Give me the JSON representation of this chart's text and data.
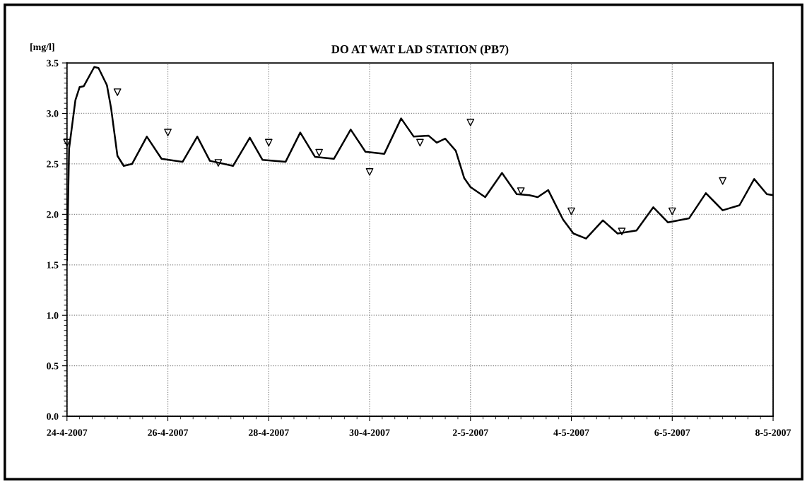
{
  "chart_data": {
    "type": "line",
    "title": "DO AT WAT LAD STATION (PB7)",
    "ylabel": "[mg/l]",
    "xlim": [
      "2007-04-24",
      "2007-05-08"
    ],
    "xticks": [
      {
        "value": "2007-04-24",
        "label": "24-4-2007"
      },
      {
        "value": "2007-04-26",
        "label": "26-4-2007"
      },
      {
        "value": "2007-04-28",
        "label": "28-4-2007"
      },
      {
        "value": "2007-04-30",
        "label": "30-4-2007"
      },
      {
        "value": "2007-05-02",
        "label": "2-5-2007"
      },
      {
        "value": "2007-05-04",
        "label": "4-5-2007"
      },
      {
        "value": "2007-05-06",
        "label": "6-5-2007"
      },
      {
        "value": "2007-05-08",
        "label": "8-5-2007"
      }
    ],
    "ylim": [
      0,
      3.5
    ],
    "yticks": [
      {
        "value": 0,
        "label": "0.0"
      },
      {
        "value": 0.5,
        "label": "0.5"
      },
      {
        "value": 1.0,
        "label": "1.0"
      },
      {
        "value": 1.5,
        "label": "1.5"
      },
      {
        "value": 2.0,
        "label": "2.0"
      },
      {
        "value": 2.5,
        "label": "2.5"
      },
      {
        "value": 3.0,
        "label": "3.0"
      },
      {
        "value": 3.5,
        "label": "3.5"
      }
    ],
    "grid": true,
    "line_style": "solid",
    "series": [
      {
        "color": "#000000",
        "marker": "none",
        "x": [
          "2007-04-24T00:00",
          "2007-04-24T01:00",
          "2007-04-24T04:00",
          "2007-04-24T06:00",
          "2007-04-24T08:00",
          "2007-04-24T13:00",
          "2007-04-24T15:00",
          "2007-04-24T19:00",
          "2007-04-24T21:00",
          "2007-04-25T00:00",
          "2007-04-25T03:00",
          "2007-04-25T07:00",
          "2007-04-25T14:00",
          "2007-04-25T21:00",
          "2007-04-26T07:00",
          "2007-04-26T14:00",
          "2007-04-26T20:00",
          "2007-04-27T07:00",
          "2007-04-27T15:00",
          "2007-04-27T21:00",
          "2007-04-28T08:00",
          "2007-04-28T15:00",
          "2007-04-28T22:00",
          "2007-04-29T07:00",
          "2007-04-29T15:00",
          "2007-04-29T22:00",
          "2007-04-30T07:00",
          "2007-04-30T15:00",
          "2007-04-30T21:00",
          "2007-05-01T04:00",
          "2007-05-01T08:00",
          "2007-05-01T12:00",
          "2007-05-01T17:00",
          "2007-05-01T21:00",
          "2007-05-02T00:00",
          "2007-05-02T07:00",
          "2007-05-02T15:00",
          "2007-05-02T22:00",
          "2007-05-03T04:00",
          "2007-05-03T08:00",
          "2007-05-03T13:00",
          "2007-05-03T20:00",
          "2007-05-04T01:00",
          "2007-05-04T07:00",
          "2007-05-04T15:00",
          "2007-05-04T22:00",
          "2007-05-05T07:00",
          "2007-05-05T15:00",
          "2007-05-05T22:00",
          "2007-05-06T08:00",
          "2007-05-06T16:00",
          "2007-05-07T00:00",
          "2007-05-07T08:00",
          "2007-05-07T15:00",
          "2007-05-07T21:00",
          "2007-05-08T00:00"
        ],
        "values": [
          1.55,
          2.65,
          3.13,
          3.26,
          3.27,
          3.46,
          3.45,
          3.28,
          3.05,
          2.58,
          2.48,
          2.5,
          2.77,
          2.55,
          2.52,
          2.77,
          2.53,
          2.48,
          2.76,
          2.54,
          2.52,
          2.81,
          2.57,
          2.55,
          2.84,
          2.62,
          2.6,
          2.95,
          2.77,
          2.78,
          2.71,
          2.75,
          2.63,
          2.36,
          2.27,
          2.17,
          2.41,
          2.2,
          2.19,
          2.17,
          2.24,
          1.95,
          1.81,
          1.76,
          1.94,
          1.81,
          1.84,
          2.07,
          1.92,
          1.96,
          2.21,
          2.04,
          2.09,
          2.35,
          2.2,
          2.19
        ]
      },
      {
        "type": "scatter",
        "color": "#000000",
        "marker": "triangle",
        "x": [
          "2007-04-24",
          "2007-04-25",
          "2007-04-26",
          "2007-04-27",
          "2007-04-28",
          "2007-04-29",
          "2007-04-30",
          "2007-05-01",
          "2007-05-02",
          "2007-05-03",
          "2007-05-04",
          "2007-05-05",
          "2007-05-06",
          "2007-05-07"
        ],
        "values": [
          2.71,
          3.21,
          2.81,
          2.51,
          2.71,
          2.61,
          2.42,
          2.71,
          2.91,
          2.23,
          2.03,
          1.83,
          2.03,
          2.33
        ]
      }
    ]
  }
}
